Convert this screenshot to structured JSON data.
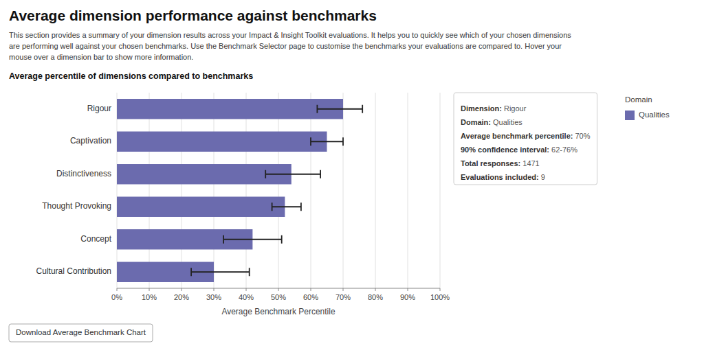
{
  "chart_data": {
    "type": "bar",
    "orientation": "horizontal",
    "title": "Average dimension performance against benchmarks",
    "intro": [
      "This section provides a summary of your dimension results across your Impact & Insight Toolkit evaluations. It helps you to quickly see which of your chosen dimensions",
      "are performing well against your chosen benchmarks. Use the Benchmark Selector page to customise the benchmarks your evaluations are compared to. Hover your",
      "mouse over a dimension bar to show more information."
    ],
    "subtitle": "Average percentile of dimensions compared to benchmarks",
    "xlabel": "Average Benchmark Percentile",
    "categories": [
      "Cultural Contribution",
      "Concept",
      "Thought Provoking",
      "Distinctiveness",
      "Captivation",
      "Rigour"
    ],
    "series": [
      {
        "name": "Qualities",
        "color": "#6B6BAE",
        "values": [
          30,
          42,
          52,
          54,
          65,
          70
        ],
        "ci_low": [
          23,
          33,
          48,
          46,
          60,
          62
        ],
        "ci_high": [
          41,
          51,
          57,
          63,
          70,
          76
        ]
      }
    ],
    "xlim": [
      0,
      100
    ],
    "xticks": [
      {
        "value": 0,
        "label": "0%"
      },
      {
        "value": 10,
        "label": "10%"
      },
      {
        "value": 20,
        "label": "20%"
      },
      {
        "value": 30,
        "label": "30%"
      },
      {
        "value": 40,
        "label": "40%"
      },
      {
        "value": 50,
        "label": "50%"
      },
      {
        "value": 60,
        "label": "60%"
      },
      {
        "value": 70,
        "label": "70%"
      },
      {
        "value": 80,
        "label": "80%"
      },
      {
        "value": 90,
        "label": "90%"
      },
      {
        "value": 100,
        "label": "100%"
      }
    ],
    "grid": true,
    "legend": "upper right",
    "legend_title": "Domain",
    "tooltip": [
      {
        "label": "Dimension: ",
        "value": "Rigour"
      },
      {
        "label": "Domain: ",
        "value": "Qualities"
      },
      {
        "label": "Average benchmark percentile: ",
        "value": "70%"
      },
      {
        "label": "90% confidence interval: ",
        "value": "62-76%"
      },
      {
        "label": "Total responses: ",
        "value": "1471"
      },
      {
        "label": "Evaluations included: ",
        "value": "9"
      }
    ],
    "button": "Download Average Benchmark Chart"
  }
}
